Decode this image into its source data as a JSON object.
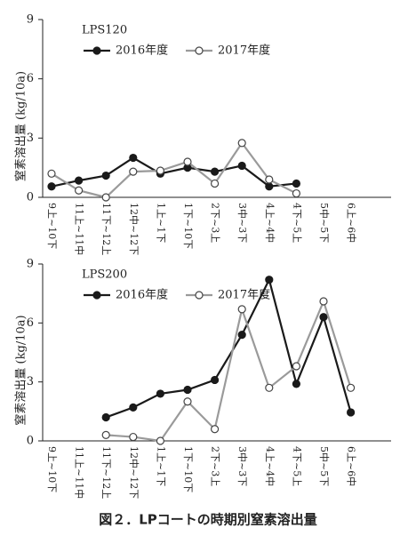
{
  "caption": "図２．LPコートの時期別窒素溶出量",
  "chart_data": [
    {
      "type": "line",
      "title": "LPS120",
      "y_label": "窒素溶出量 (kg/10a)",
      "categories": [
        "9上~10下",
        "11上~11中",
        "11下~12上",
        "12中~12下",
        "1上~1下",
        "1下~10下",
        "2下~3上",
        "3中~3下",
        "4上~4中",
        "4下~5上",
        "5中~5下",
        "6上~6中"
      ],
      "series": [
        {
          "name": "2016年度",
          "color": "#1a1a1a",
          "marker": "filled",
          "values": [
            0.55,
            0.85,
            1.1,
            2.0,
            1.2,
            1.5,
            1.3,
            1.6,
            0.55,
            0.7,
            null,
            null
          ]
        },
        {
          "name": "2017年度",
          "color": "#9a9a9a",
          "marker": "open",
          "values": [
            1.2,
            0.35,
            0.0,
            1.3,
            1.35,
            1.8,
            0.7,
            2.75,
            0.9,
            0.2,
            null,
            null
          ]
        }
      ],
      "ylim": [
        0,
        9
      ],
      "yticks": [
        0,
        3,
        6,
        9
      ]
    },
    {
      "type": "line",
      "title": "LPS200",
      "y_label": "窒素溶出量 (kg/10a)",
      "categories": [
        "9上~10下",
        "11上~11中",
        "11下~12上",
        "12中~12下",
        "1上~1下",
        "1下~10下",
        "2下~3上",
        "3中~3下",
        "4上~4中",
        "4下~5上",
        "5中~5下",
        "6上~6中"
      ],
      "series": [
        {
          "name": "2016年度",
          "color": "#1a1a1a",
          "marker": "filled",
          "values": [
            null,
            null,
            1.2,
            1.7,
            2.4,
            2.6,
            3.1,
            5.4,
            8.2,
            2.9,
            6.3,
            1.45
          ]
        },
        {
          "name": "2017年度",
          "color": "#9a9a9a",
          "marker": "open",
          "values": [
            null,
            null,
            0.3,
            0.2,
            0.0,
            2.0,
            0.6,
            6.7,
            2.7,
            3.8,
            7.1,
            2.7
          ]
        }
      ],
      "ylim": [
        0,
        9
      ],
      "yticks": [
        0,
        3,
        6,
        9
      ]
    }
  ]
}
